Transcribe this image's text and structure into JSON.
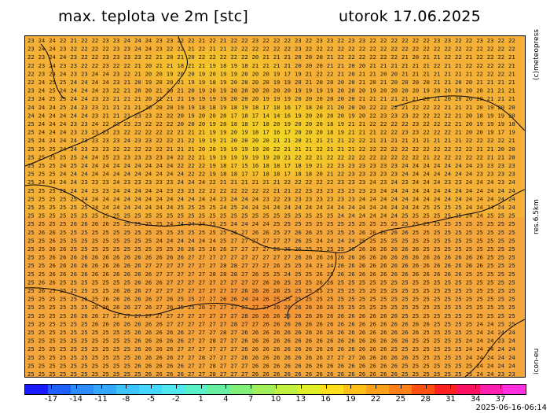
{
  "header": {
    "title": "max. teplota ve 2m [stc]",
    "date": "utorok 17.06.2025"
  },
  "side_labels": {
    "copyright": "(c)meteopress",
    "resolution": "res.6.5km",
    "model": "icon-eu"
  },
  "run_time": "2025-06-16-06:14",
  "colorbar": {
    "tick_labels": [
      "-17",
      "-14",
      "-11",
      "-8",
      "-5",
      "-2",
      "1",
      "4",
      "7",
      "10",
      "13",
      "16",
      "19",
      "22",
      "25",
      "28",
      "31",
      "34",
      "37"
    ],
    "colors": [
      "#1a1aff",
      "#2060ff",
      "#2b8cff",
      "#34a8ff",
      "#3dc4ff",
      "#45d8ff",
      "#4fe8f0",
      "#5af0c8",
      "#66f0a0",
      "#80f07a",
      "#a0f05c",
      "#c0f040",
      "#e0f028",
      "#ffe01e",
      "#ffc01a",
      "#ffa01a",
      "#ff8018",
      "#ff5010",
      "#ff2020",
      "#ff1060",
      "#ff20b0",
      "#ff30e0"
    ]
  },
  "map": {
    "grid_rows": [
      "23 24 24 22 21 22 22 23 23 24 24 24 23 23 22 22 21 22 21 22 22 23 22 22 22 23 22 23 23 22 23 23 22 22 22 22 22 22 23 23 22 22 23 23 22 22",
      "23 24 24 23 22 22 22 22 23 23 24 24 23 22 22 21 22 21 21 22 22 22 22 22 22 23 22 22 22 22 22 22 22 22 22 22 22 22 22 22 22 22 22 22 22 22",
      "22 23 24 24 23 22 22 23 23 23 23 22 21 20 21 20 22 22 22 22 22 20 21 21 21 20 20 20 21 22 22 22 22 22 22 21 20 21 21 22 22 21 22 22 22 21",
      "22 23 24 23 23 22 22 23 22 22 21 20 21 21 18 21 21 19 18 19 18 21 21 21 21 20 20 20 21 21 20 20 21 21 21 21 21 21 22 21 21 22 22 22 22 21",
      "22 23 24 24 23 23 24 24 23 22 21 20 20 19 20 20 19 20 19 19 20 20 20 19 17 19 21 22 22 21 20 21 21 20 20 21 21 21 21 21 21 21 22 22 22 21",
      "22 24 25 25 24 24 24 24 23 21 20 19 20 20 21 19 19 18 19 20 20 20 20 19 19 20 21 20 20 20 20 21 20 21 20 20 20 20 21 21 20 20 21 21 21 21",
      "23 24 25 24 24 24 24 23 22 21 20 20 21 20 21 20 19 20 19 20 20 20 20 20 20 19 19 19 19 20 20 20 19 20 20 20 20 19 20 20 20 20 20 21 21 21",
      "23 24 25 25 24 24 23 23 21 21 21 20 21 21 21 19 19 19 19 20 20 20 19 19 19 20 20 20 20 20 20 21 21 21 21 21 21 20 21 20 20 20 20 21 21 21",
      "24 24 24 25 24 23 23 21 21 21 21 20 20 20 19 19 18 18 19 18 19 18 17 18 16 17 18 20 21 20 20 20 22 22 22 21 22 22 22 21 21 21 20 19 20 20",
      "24 24 24 24 24 24 23 21 21 21 23 23 22 22 20 19 20 20 20 17 18 17 14 14 16 19 20 20 20 20 19 20 22 23 23 23 22 22 22 22 21 20 18 19 19 20",
      "25 24 24 24 23 23 24 22 23 23 23 22 22 22 20 20 20 19 20 18 18 17 18 20 19 20 20 20 18 19 21 21 22 22 22 22 23 22 22 22 21 20 19 19 19 18",
      "25 24 24 24 23 23 23 23 23 22 22 22 22 22 21 21 21 19 19 20 19 18 17 16 17 20 20 20 18 19 21 21 21 22 22 23 23 22 22 22 21 20 20 19 17 19",
      "25 24 24 24 24 23 23 23 23 24 23 23 22 22 21 22 19 19 21 20 20 20 20 21 21 20 21 21 21 21 22 22 21 21 21 21 21 21 21 21 21 22 22 22 22 21",
      "25 25 25 24 24 23 23 23 22 22 22 22 22 21 21 21 20 20 19 19 19 19 20 22 21 21 21 22 21 21 21 22 22 22 22 22 22 22 22 22 22 22 21 21 20 20",
      "25 25 25 25 25 24 24 25 23 23 23 23 23 24 22 22 21 19 19 19 19 19 19 20 21 22 22 21 22 22 22 22 22 22 22 22 22 21 22 22 22 22 22 21 21 20",
      "25 25 25 24 25 24 24 24 24 24 24 24 24 24 22 22 22 19 18 17 15 16 18 18 17 18 19 21 22 23 23 23 23 23 23 24 24 24 24 24 24 24 23 23 23 23",
      "25 25 25 24 24 24 24 24 24 24 24 24 24 24 24 22 22 19 18 18 17 17 18 18 17 18 18 20 21 22 23 23 23 23 23 24 24 24 24 24 24 24 23 23 23 23",
      "25 24 24 24 24 23 23 23 24 23 23 23 23 23 24 24 24 22 21 21 21 21 21 21 22 22 22 22 22 23 23 23 24 23 24 23 24 24 24 23 23 24 24 24 23 24",
      "25 25 25 25 24 24 23 23 24 24 24 24 24 23 23 23 22 22 22 22 22 22 22 21 21 22 23 23 23 23 23 23 23 24 24 24 24 24 24 24 24 24 24 24 24 24",
      "25 25 25 25 25 24 24 24 24 24 24 24 24 24 24 24 24 24 23 24 24 24 23 22 23 23 23 23 23 23 23 24 24 24 24 24 24 24 24 24 24 24 24 24 24 24",
      "25 25 25 25 25 25 24 24 24 24 24 24 24 24 25 25 25 25 24 25 24 24 24 24 24 24 24 24 24 24 24 24 24 24 24 24 24 25 25 25 25 24 24 24 24 24",
      "25 25 25 25 25 25 25 25 25 25 25 25 25 25 25 25 25 25 25 25 25 25 25 25 25 25 25 25 25 24 24 24 24 24 24 25 25 25 25 25 25 24 24 25 25 25",
      "25 25 25 25 26 26 26 26 25 25 25 25 25 24 24 24 24 25 25 24 24 24 24 25 25 25 25 25 25 25 25 25 25 25 25 25 25 25 25 25 25 25 25 25 25 25",
      "25 26 26 25 25 25 25 25 25 25 25 25 25 25 25 25 25 25 25 26 27 26 26 25 27 26 26 25 25 25 25 26 26 26 26 26 25 25 25 25 25 25 25 25 25 25",
      "25 25 26 25 25 25 25 25 25 25 25 25 24 24 24 24 24 24 25 27 27 27 27 27 27 26 25 24 24 24 24 25 25 25 25 25 25 25 25 25 25 25 25 25 25 25",
      "25 25 26 26 25 25 25 25 25 25 25 25 25 25 26 26 25 26 26 27 27 27 27 26 26 26 25 25 25 25 26 26 26 26 26 26 26 25 25 25 25 25 25 25 25 25",
      "25 25 26 26 26 26 26 26 26 26 26 26 26 26 26 27 27 27 27 27 27 27 27 27 27 26 26 26 26 26 26 26 26 26 26 26 26 26 26 26 26 26 26 25 25 25",
      "25 25 26 26 26 26 26 26 26 26 26 27 27 27 27 27 27 27 28 28 27 27 27 26 25 25 24 23 24 26 26 26 26 26 26 26 26 26 26 26 26 26 26 25 25 25",
      "25 25 26 26 26 26 26 26 26 26 26 26 27 27 27 27 27 28 28 28 27 26 25 25 24 25 25 26 25 26 26 26 26 26 26 26 26 26 26 26 26 25 25 25 25 25",
      "25 26 26 25 25 25 25 25 25 25 26 26 26 27 27 27 27 27 27 27 27 27 26 26 25 25 25 26 26 25 25 25 25 25 25 25 25 25 25 25 25 25 25 25 25 25",
      "25 26 25 25 25 25 25 25 26 26 26 27 27 27 27 27 27 27 27 27 26 26 26 26 25 25 25 25 25 25 25 25 25 25 25 25 25 25 25 25 25 25 25 25 25 25",
      "25 25 25 25 25 25 25 26 26 26 26 26 27 26 25 25 27 27 26 26 24 24 26 25 25 25 25 25 25 25 25 25 25 25 25 25 25 25 25 25 25 25 25 25 25 25",
      "25 25 25 25 25 25 26 26 26 26 27 26 27 26 25 25 26 27 27 27 27 27 27 26 26 26 26 26 26 25 25 25 25 25 25 25 25 25 25 25 25 25 25 25 25 25",
      "25 25 25 25 26 26 26 27 27 27 27 27 27 27 27 27 27 27 27 27 28 26 26 26 26 26 26 26 26 26 26 26 26 26 26 25 25 25 25 25 25 25 25 25 25 25",
      "25 25 25 25 25 25 26 26 26 26 26 26 26 27 27 27 27 27 27 28 27 27 26 26 26 26 26 26 26 26 26 26 26 26 26 26 26 26 25 25 25 25 24 24 25 25",
      "25 25 25 25 25 25 25 25 25 25 26 26 26 26 26 27 27 27 28 27 26 26 26 26 26 26 26 26 26 26 26 26 26 26 26 26 26 25 25 25 25 25 24 24 24 24",
      "25 25 25 25 25 25 25 25 25 25 26 26 26 26 26 27 27 28 27 27 26 26 26 26 26 26 26 26 26 26 26 26 26 26 26 26 25 25 25 25 25 24 24 24 23 24",
      "25 25 25 25 25 25 25 25 25 25 26 26 26 26 27 27 27 27 27 27 26 26 26 26 26 26 26 26 26 26 26 26 26 26 25 25 25 25 25 25 25 24 24 24 24 24",
      "25 25 25 25 25 25 25 25 25 25 26 26 26 26 27 27 28 27 27 27 26 26 26 26 26 26 26 26 27 27 27 26 26 26 26 26 25 25 25 25 25 24 24 24 24 24",
      "25 25 25 25 25 25 25 25 25 25 26 26 26 26 26 27 27 28 27 27 27 26 26 26 26 26 26 26 26 26 26 26 26 26 26 25 25 25 25 25 25 25 24 24 24 24",
      "25 25 25 25 25 25 25 25 25 25 25 26 26 26 26 27 27 28 27 27 27 26 26 26 26 26 26 26 26 26 26 26 26 26 26 25 25 25 25 25 25 25 24 24 23 23"
    ]
  }
}
